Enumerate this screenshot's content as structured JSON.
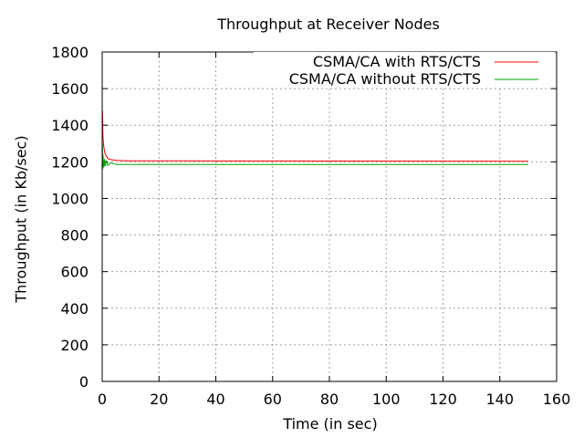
{
  "chart_data": {
    "type": "line",
    "title": "Throughput at Receiver Nodes",
    "xlabel": "Time (in sec)",
    "ylabel": "Throughput (in Kb/sec)",
    "xlim": [
      0,
      160
    ],
    "ylim": [
      0,
      1800
    ],
    "x_ticks": [
      0,
      20,
      40,
      60,
      80,
      100,
      120,
      140,
      160
    ],
    "y_ticks": [
      0,
      200,
      400,
      600,
      800,
      1000,
      1200,
      1400,
      1600,
      1800
    ],
    "grid": true,
    "legend_position": "top-right",
    "series": [
      {
        "name": "CSMA/CA with RTS/CTS",
        "color": "#ff0000",
        "x": [
          0.1,
          0.2,
          0.3,
          0.5,
          0.8,
          1.0,
          1.5,
          2.0,
          3.0,
          5.0,
          10.0,
          29.0,
          150.0
        ],
        "y": [
          1480,
          1390,
          1330,
          1290,
          1262,
          1245,
          1228,
          1218,
          1212,
          1208,
          1205,
          1205,
          1203
        ]
      },
      {
        "name": "CSMA/CA without RTS/CTS",
        "color": "#00a000",
        "x": [
          0.1,
          0.2,
          0.3,
          0.5,
          0.8,
          1.0,
          1.5,
          2.0,
          3.0,
          5.0,
          10.0,
          150.0
        ],
        "y": [
          1300,
          1160,
          1240,
          1170,
          1215,
          1175,
          1205,
          1180,
          1195,
          1185,
          1185,
          1185
        ]
      }
    ]
  }
}
